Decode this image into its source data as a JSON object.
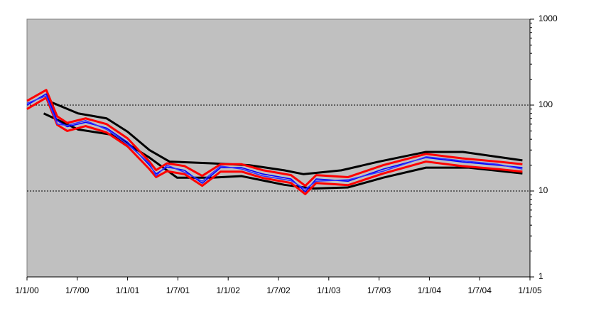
{
  "chart_data": {
    "type": "line",
    "log_y": true,
    "grid": true,
    "background": "#c0c0c0",
    "xlim": [
      0,
      60
    ],
    "xticks": [
      {
        "value": 0,
        "label": "1/1/00"
      },
      {
        "value": 6,
        "label": "1/7/00"
      },
      {
        "value": 12,
        "label": "1/1/01"
      },
      {
        "value": 18,
        "label": "1/7/01"
      },
      {
        "value": 24,
        "label": "1/1/02"
      },
      {
        "value": 30,
        "label": "1/7/02"
      },
      {
        "value": 36,
        "label": "1/1/03"
      },
      {
        "value": 42,
        "label": "1/7/03"
      },
      {
        "value": 48,
        "label": "1/1/04"
      },
      {
        "value": 54,
        "label": "1/7/04"
      },
      {
        "value": 60,
        "label": "1/1/05"
      }
    ],
    "ylim": [
      1,
      1000
    ],
    "yticks": [
      1,
      10,
      100,
      1000
    ],
    "series": [
      {
        "color": "#000000",
        "x": [
          2.7,
          6.1,
          9.5,
          12,
          14.6,
          17,
          22,
          26.5,
          30.7,
          33,
          37.5,
          42,
          47.6,
          52,
          59.1
        ],
        "values": [
          110,
          80,
          70,
          49,
          30,
          22,
          21,
          20,
          17.4,
          15.7,
          17.4,
          22,
          28.5,
          28.5,
          22.7
        ]
      },
      {
        "color": "#000000",
        "x": [
          2,
          6.1,
          10.3,
          14.6,
          17.9,
          22,
          25.6,
          30.7,
          34.1,
          38.3,
          42.5,
          47.6,
          52.7,
          59.1
        ],
        "values": [
          80,
          52,
          45,
          24.5,
          14.3,
          14.3,
          14.9,
          11.8,
          10.7,
          11,
          14.3,
          18.7,
          18.7,
          16
        ]
      },
      {
        "color": "#ff0000",
        "x": [
          0,
          2.3,
          3.6,
          4.8,
          7,
          9.5,
          12,
          14.6,
          15.4,
          16.7,
          18.8,
          20.9,
          23.1,
          25.6,
          28.1,
          31.5,
          33.2,
          34.5,
          38.3,
          42.5,
          47.6,
          51.9,
          56.1,
          59.1
        ],
        "values": [
          112,
          150,
          74,
          62,
          70,
          60,
          41,
          22,
          17.5,
          21,
          19.5,
          15,
          20.5,
          20.5,
          17.5,
          15.3,
          11.5,
          15.3,
          14.5,
          20,
          27,
          24,
          22,
          20.5
        ]
      },
      {
        "color": "#ff0000",
        "x": [
          0,
          2.3,
          3.6,
          4.8,
          7,
          9.5,
          12,
          14.6,
          15.4,
          16.7,
          18.8,
          20.9,
          23.1,
          25.6,
          28.1,
          31.5,
          33.2,
          34.5,
          38.3,
          42.5,
          47.6,
          51.9,
          56.1,
          59.1
        ],
        "values": [
          90,
          122,
          59,
          50,
          57,
          48,
          33,
          18,
          14.5,
          17,
          15.7,
          11.5,
          16.8,
          16.8,
          14.2,
          12.4,
          9.2,
          12.4,
          11.7,
          16,
          22,
          19.5,
          18,
          16.8
        ]
      },
      {
        "color": "#0000ff",
        "x": [
          0,
          2.3,
          3.6,
          4.8,
          7,
          9.5,
          12,
          14.6,
          15.4,
          16.7,
          18.8,
          20.9,
          23.1,
          25.6,
          28.1,
          31.5,
          33.2,
          34.5,
          38.3,
          42.5,
          47.6,
          51.9,
          56.1,
          59.1
        ],
        "values": [
          100,
          135,
          66,
          56,
          63,
          54,
          37,
          20,
          15.8,
          19,
          17.4,
          12.3,
          18.7,
          18.7,
          15.8,
          13.8,
          9.8,
          13.8,
          13,
          18,
          24.5,
          21.8,
          20,
          18.7
        ]
      },
      {
        "color": "#3333ff",
        "x": [
          0,
          2.3,
          3.6,
          4.8,
          7,
          9.5,
          12,
          14.6,
          15.4,
          16.7,
          18.8,
          20.9,
          23.1,
          25.6,
          28.1,
          31.5,
          33.2,
          34.5,
          38.3,
          42.5,
          47.6,
          51.9,
          56.1,
          59.1
        ],
        "values": [
          105,
          128,
          60,
          58,
          66,
          52,
          35,
          21,
          15,
          20,
          16.5,
          13,
          19.5,
          18,
          15,
          13.2,
          10.5,
          13,
          13.5,
          17,
          25,
          22.5,
          20.5,
          18
        ]
      }
    ]
  }
}
